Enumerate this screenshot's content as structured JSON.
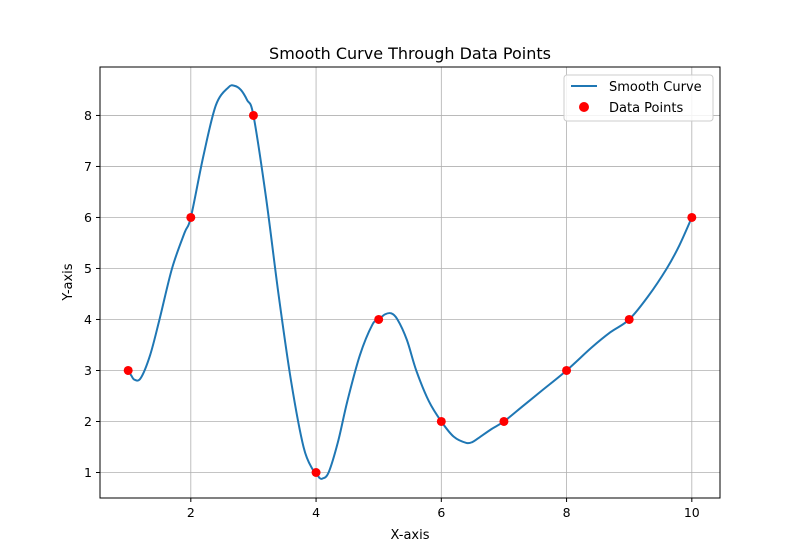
{
  "chart_data": {
    "type": "line",
    "title": "Smooth Curve Through Data Points",
    "xlabel": "X-axis",
    "ylabel": "Y-axis",
    "xlim": [
      0.55,
      10.45
    ],
    "ylim": [
      0.5,
      8.95
    ],
    "x_ticks": [
      2,
      4,
      6,
      8,
      10
    ],
    "y_ticks": [
      1,
      2,
      3,
      4,
      5,
      6,
      7,
      8
    ],
    "grid": true,
    "legend_position": "top-right",
    "series": [
      {
        "name": "Smooth Curve",
        "kind": "line",
        "color": "#1f77b4",
        "x": [
          1,
          1.05,
          1.1,
          1.2,
          1.35,
          1.5,
          1.7,
          1.9,
          2,
          2.2,
          2.4,
          2.6,
          2.7,
          2.8,
          2.9,
          3,
          3.2,
          3.4,
          3.6,
          3.8,
          3.95,
          4,
          4.05,
          4.1,
          4.2,
          4.35,
          4.5,
          4.7,
          4.9,
          5,
          5.1,
          5.2,
          5.3,
          5.45,
          5.6,
          5.8,
          6,
          6.2,
          6.4,
          6.5,
          6.6,
          6.8,
          7,
          7.3,
          7.6,
          8,
          8.4,
          8.7,
          9,
          9.3,
          9.6,
          9.8,
          10
        ],
        "y": [
          3.0,
          2.9,
          2.82,
          2.85,
          3.3,
          4.0,
          5.0,
          5.7,
          6.0,
          7.2,
          8.2,
          8.55,
          8.58,
          8.5,
          8.3,
          8.0,
          6.4,
          4.5,
          2.8,
          1.5,
          1.05,
          1.0,
          0.9,
          0.88,
          1.0,
          1.6,
          2.4,
          3.3,
          3.9,
          4.0,
          4.1,
          4.12,
          4.0,
          3.6,
          3.0,
          2.4,
          2.0,
          1.7,
          1.58,
          1.6,
          1.68,
          1.85,
          2.0,
          2.3,
          2.6,
          3.0,
          3.45,
          3.75,
          4.0,
          4.45,
          5.0,
          5.45,
          6.0
        ]
      },
      {
        "name": "Data Points",
        "kind": "scatter",
        "color": "#ff0000",
        "x": [
          1,
          2,
          3,
          4,
          5,
          6,
          7,
          8,
          9,
          10
        ],
        "y": [
          3,
          6,
          8,
          1,
          4,
          2,
          2,
          3,
          4,
          6
        ]
      }
    ]
  }
}
